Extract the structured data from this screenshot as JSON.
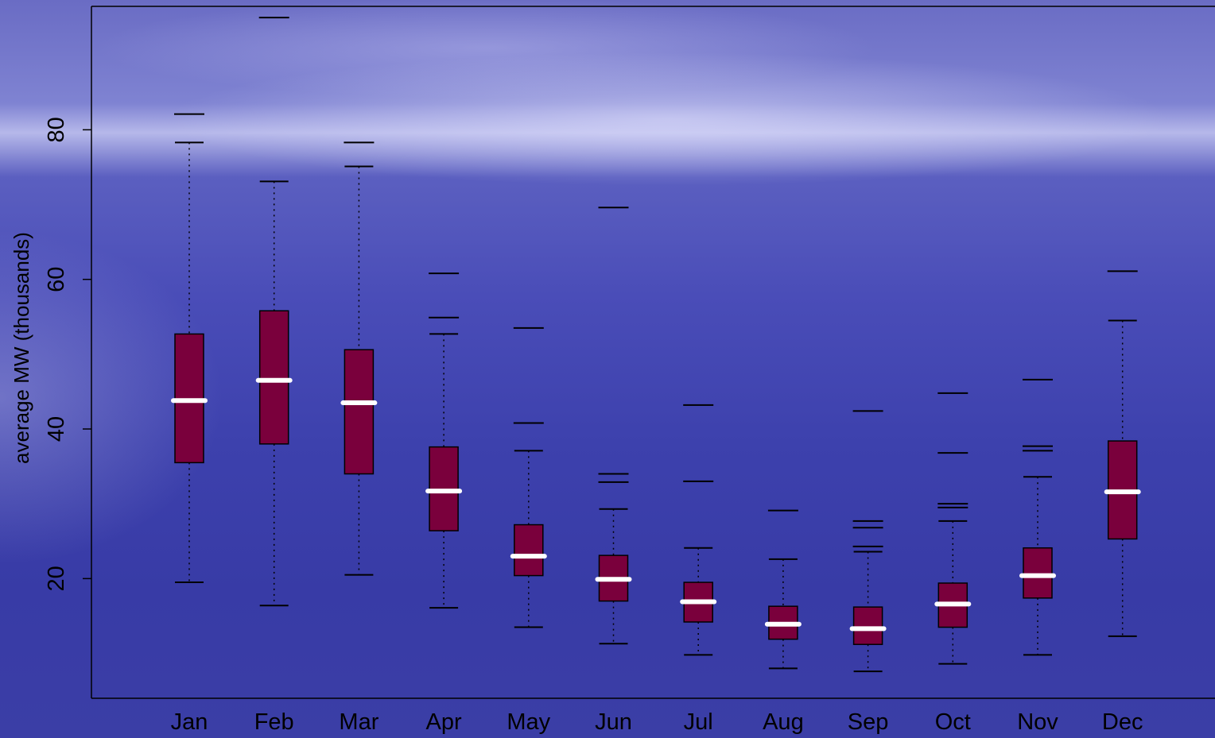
{
  "chart_data": {
    "type": "box",
    "title": "",
    "xlabel": "",
    "ylabel": "average MW (thousands)",
    "ylim": [
      4,
      96.5
    ],
    "yticks": [
      20,
      40,
      60,
      80
    ],
    "grid": false,
    "categories": [
      "Jan",
      "Feb",
      "Mar",
      "Apr",
      "May",
      "Jun",
      "Jul",
      "Aug",
      "Sep",
      "Oct",
      "Nov",
      "Dec"
    ],
    "boxes": [
      {
        "label": "Jan",
        "whisker_low": 19.5,
        "q1": 35.5,
        "median": 43.8,
        "q3": 52.7,
        "whisker_high": 78.3,
        "outliers": [
          82.1
        ]
      },
      {
        "label": "Feb",
        "whisker_low": 16.4,
        "q1": 38.0,
        "median": 46.5,
        "q3": 55.8,
        "whisker_high": 73.1,
        "outliers": [
          95.0
        ]
      },
      {
        "label": "Mar",
        "whisker_low": 20.5,
        "q1": 34.0,
        "median": 43.5,
        "q3": 50.6,
        "whisker_high": 75.1,
        "outliers": [
          78.3
        ]
      },
      {
        "label": "Apr",
        "whisker_low": 16.1,
        "q1": 26.4,
        "median": 31.7,
        "q3": 37.6,
        "whisker_high": 52.7,
        "outliers": [
          54.9,
          60.8
        ]
      },
      {
        "label": "May",
        "whisker_low": 13.5,
        "q1": 20.4,
        "median": 23.0,
        "q3": 27.2,
        "whisker_high": 37.1,
        "outliers": [
          40.8,
          53.5
        ]
      },
      {
        "label": "Jun",
        "whisker_low": 11.3,
        "q1": 17.0,
        "median": 19.9,
        "q3": 23.1,
        "whisker_high": 29.3,
        "outliers": [
          32.9,
          34.0,
          69.6
        ]
      },
      {
        "label": "Jul",
        "whisker_low": 9.8,
        "q1": 14.2,
        "median": 16.9,
        "q3": 19.5,
        "whisker_high": 24.1,
        "outliers": [
          33.0,
          43.2
        ]
      },
      {
        "label": "Aug",
        "whisker_low": 8.0,
        "q1": 11.9,
        "median": 13.9,
        "q3": 16.3,
        "whisker_high": 22.6,
        "outliers": [
          29.1
        ]
      },
      {
        "label": "Sep",
        "whisker_low": 7.6,
        "q1": 11.2,
        "median": 13.3,
        "q3": 16.2,
        "whisker_high": 23.6,
        "outliers": [
          24.3,
          26.8,
          27.7,
          42.4
        ]
      },
      {
        "label": "Oct",
        "whisker_low": 8.6,
        "q1": 13.5,
        "median": 16.6,
        "q3": 19.4,
        "whisker_high": 27.7,
        "outliers": [
          29.5,
          30.0,
          36.8,
          44.8
        ]
      },
      {
        "label": "Nov",
        "whisker_low": 9.8,
        "q1": 17.4,
        "median": 20.4,
        "q3": 24.1,
        "whisker_high": 33.6,
        "outliers": [
          37.1,
          37.7,
          46.6
        ]
      },
      {
        "label": "Dec",
        "whisker_low": 12.3,
        "q1": 25.3,
        "median": 31.6,
        "q3": 38.4,
        "whisker_high": 54.5,
        "outliers": [
          61.1
        ]
      }
    ],
    "colors": {
      "box_fill": "#7a003c",
      "median": "#ffffff",
      "axis": "#000000",
      "background": "#4a4db8"
    }
  }
}
